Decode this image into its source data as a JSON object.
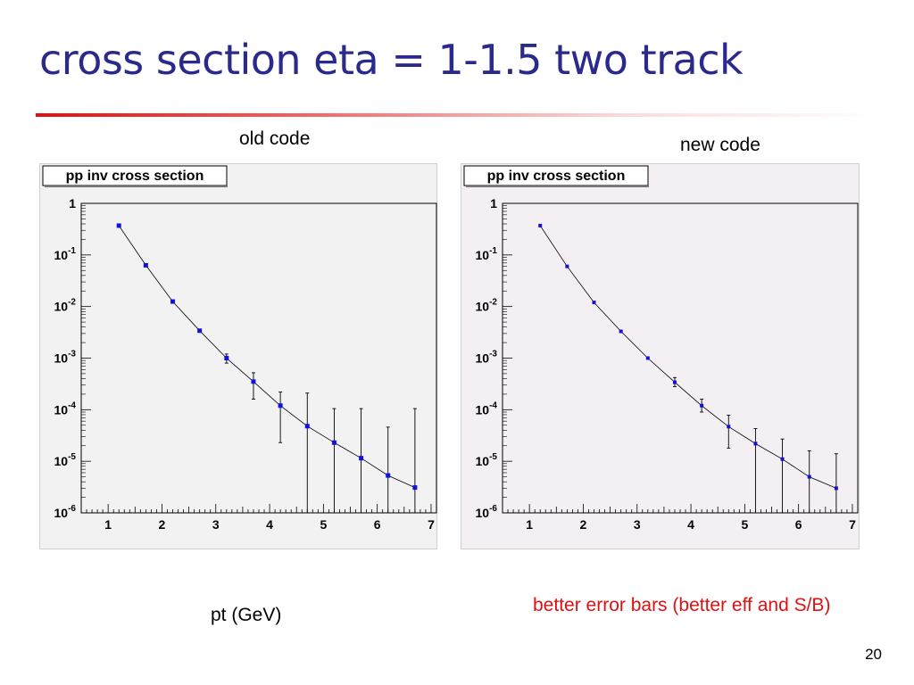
{
  "slide": {
    "title": "cross section eta = 1-1.5 two track",
    "left_caption": "old code",
    "right_caption": "new code",
    "x_caption": "pt (GeV)",
    "note": "better error bars (better eff and S/B)",
    "page_number": "20"
  },
  "colors": {
    "title": "#2a2a8c",
    "accent_rule": "#e01010",
    "note": "#e01010",
    "marker": "#1010e0",
    "left_panel_bg": "#f2f2f2",
    "right_panel_bg": "#f3eff3"
  },
  "chart_data": [
    {
      "type": "scatter",
      "title": "pp inv cross section",
      "xlim": [
        0.5,
        7.1
      ],
      "ylim": [
        1e-06,
        1
      ],
      "y_scale": "log",
      "x_ticks": [
        1,
        2,
        3,
        4,
        5,
        6,
        7
      ],
      "y_ticks": [
        {
          "value": 1,
          "base": "1",
          "exp": ""
        },
        {
          "value": 0.1,
          "base": "10",
          "exp": "-1"
        },
        {
          "value": 0.01,
          "base": "10",
          "exp": "-2"
        },
        {
          "value": 0.001,
          "base": "10",
          "exp": "-3"
        },
        {
          "value": 0.0001,
          "base": "10",
          "exp": "-4"
        },
        {
          "value": 1e-05,
          "base": "10",
          "exp": "-5"
        },
        {
          "value": 1e-06,
          "base": "10",
          "exp": "-6"
        }
      ],
      "series": [
        {
          "x": [
            1.2,
            1.7,
            2.2,
            2.7,
            3.2,
            3.7,
            4.2,
            4.7,
            5.2,
            5.7,
            6.2,
            6.7
          ],
          "y": [
            0.37,
            0.063,
            0.0125,
            0.0034,
            0.001,
            0.00035,
            0.00012,
            4.8e-05,
            2.3e-05,
            1.15e-05,
            5.3e-06,
            3.1e-06
          ],
          "y_low": [
            0.37,
            0.063,
            0.0125,
            0.0034,
            0.0008,
            0.00016,
            2.3e-05,
            1e-06,
            1e-06,
            1e-06,
            1e-06,
            1e-06
          ],
          "y_high": [
            0.37,
            0.063,
            0.0125,
            0.0034,
            0.0012,
            0.00052,
            0.00022,
            0.00021,
            0.000105,
            0.000105,
            4.6e-05,
            0.000105
          ]
        }
      ],
      "grid": false,
      "legend": "none"
    },
    {
      "type": "scatter",
      "title": "pp inv cross section",
      "xlim": [
        0.5,
        7.1
      ],
      "ylim": [
        1e-06,
        1
      ],
      "y_scale": "log",
      "x_ticks": [
        1,
        2,
        3,
        4,
        5,
        6,
        7
      ],
      "y_ticks": [
        {
          "value": 1,
          "base": "1",
          "exp": ""
        },
        {
          "value": 0.1,
          "base": "10",
          "exp": "-1"
        },
        {
          "value": 0.01,
          "base": "10",
          "exp": "-2"
        },
        {
          "value": 0.001,
          "base": "10",
          "exp": "-3"
        },
        {
          "value": 0.0001,
          "base": "10",
          "exp": "-4"
        },
        {
          "value": 1e-05,
          "base": "10",
          "exp": "-5"
        },
        {
          "value": 1e-06,
          "base": "10",
          "exp": "-6"
        }
      ],
      "series": [
        {
          "x": [
            1.2,
            1.7,
            2.2,
            2.7,
            3.2,
            3.7,
            4.2,
            4.7,
            5.2,
            5.7,
            6.2,
            6.7
          ],
          "y": [
            0.37,
            0.06,
            0.012,
            0.0033,
            0.001,
            0.00034,
            0.00012,
            4.7e-05,
            2.2e-05,
            1.1e-05,
            5e-06,
            3e-06
          ],
          "y_low": [
            0.37,
            0.06,
            0.012,
            0.0033,
            0.001,
            0.00028,
            9e-05,
            1.8e-05,
            1e-06,
            1e-06,
            1e-06,
            1e-06
          ],
          "y_high": [
            0.37,
            0.06,
            0.012,
            0.0033,
            0.001,
            0.00042,
            0.00016,
            7.8e-05,
            4.3e-05,
            2.7e-05,
            1.6e-05,
            1.4e-05
          ]
        }
      ],
      "grid": false,
      "legend": "none"
    }
  ]
}
